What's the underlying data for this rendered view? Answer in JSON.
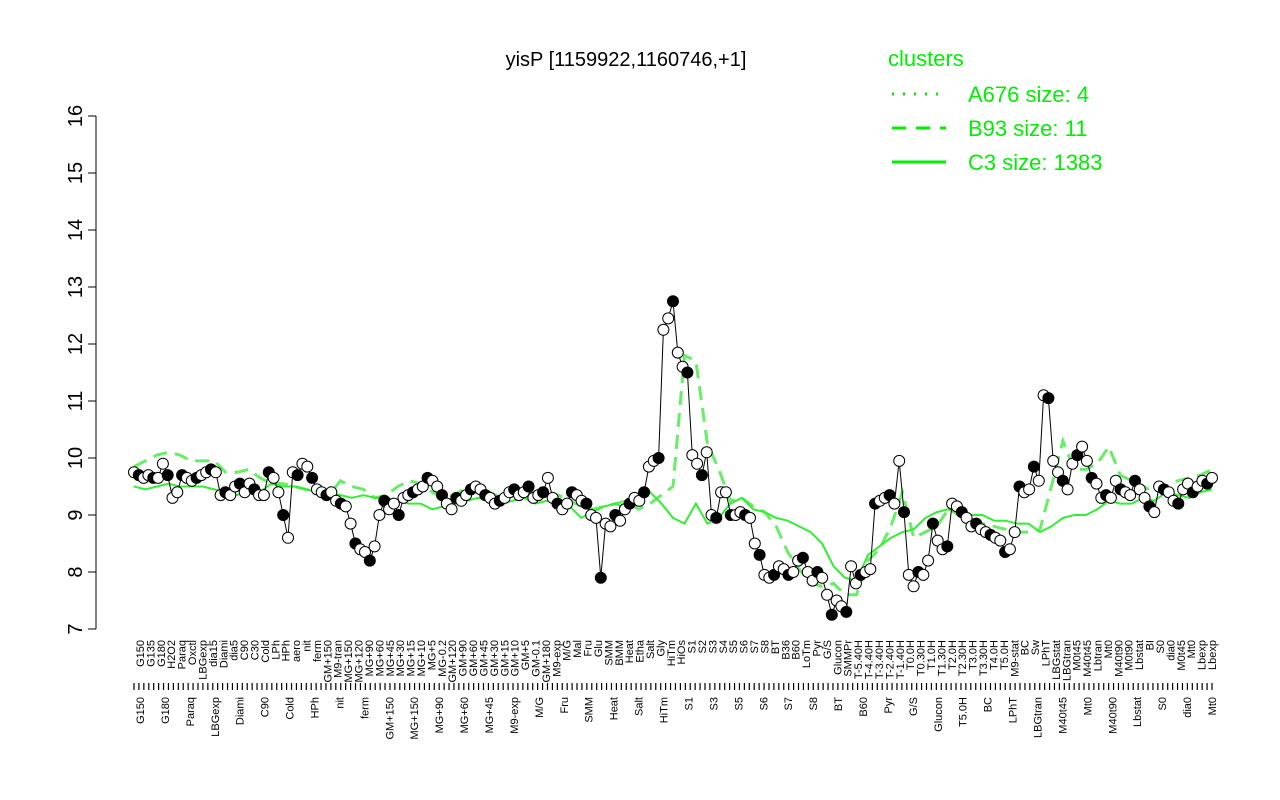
{
  "chart_data": {
    "type": "line",
    "title": "yisP [1159922,1160746,+1]",
    "xlabel": "",
    "ylabel": "",
    "ylim": [
      7,
      16
    ],
    "yticks": [
      7,
      8,
      9,
      10,
      11,
      12,
      13,
      14,
      15,
      16
    ],
    "grid": false,
    "legend": {
      "placement": "top-right",
      "title": "clusters",
      "entries": [
        {
          "label": "A676 size: 4",
          "style": "dotted"
        },
        {
          "label": "B93 size: 11",
          "style": "dashed"
        },
        {
          "label": "C3 size: 1383",
          "style": "solid"
        }
      ]
    },
    "tick_labels_top": [
      "G150",
      "G135",
      "G180",
      "H2O2",
      "Paraq",
      "Oxctl",
      "LBGexp",
      "dia15",
      "Diami",
      "dia5",
      "C90",
      "C30",
      "Cold",
      "LPh",
      "HPh",
      "aero",
      "nit",
      "ferm",
      "GM+150",
      "M9-tran",
      "MG+150",
      "MG+120",
      "MG+90",
      "MG+60",
      "MG+45",
      "MG+30",
      "MG+15",
      "MG+10",
      "MG+5",
      "MG-0.2",
      "GM+120",
      "GM+90",
      "GM+60",
      "GM+45",
      "GM+30",
      "GM+15",
      "GM+10",
      "GM+5",
      "GM-0.1",
      "GM+180",
      "M9-exp",
      "M/G",
      "Mal",
      "Fru",
      "Glu",
      "SMM",
      "BMM",
      "Heat",
      "Etha",
      "Salt",
      "Gly",
      "HiTm",
      "HiOs",
      "S1",
      "S2",
      "S3",
      "S4",
      "S5",
      "S6",
      "S7",
      "S8",
      "BT",
      "B36",
      "B60",
      "LoTm",
      "Pyr",
      "G/S",
      "Glucon",
      "SMMPr",
      "T-5.40H",
      "T-4.40H",
      "T-3.40H",
      "T-2.40H",
      "T-1.40H",
      "T0.0H",
      "T0.30H",
      "T1.0H",
      "T1.30H",
      "T2.0H",
      "T2.30H",
      "T3.0H",
      "T3.30H",
      "T4.0H",
      "T5.0H",
      "M9-stat",
      "BC",
      "Sw",
      "LPhT",
      "LBGstat",
      "LBGtran",
      "M0t45",
      "M40t45",
      "Lbtran",
      "Mt0",
      "M40t90",
      "M0t90",
      "Lbstat",
      "BI",
      "S0",
      "dia0",
      "M0t45",
      "Mt0",
      "Lbexp",
      "Lbexp"
    ],
    "tick_labels_bottom": [
      "G150",
      "G180",
      "Paraq",
      "LBGexp",
      "Diami",
      "C90",
      "Cold",
      "HPh",
      "nit",
      "ferm",
      "GM+150",
      "MG+150",
      "MG+90",
      "MG+60",
      "MG+45",
      "M9-exp",
      "M/G",
      "Fru",
      "SMM",
      "Heat",
      "Salt",
      "HiTm",
      "S1",
      "S3",
      "S5",
      "S6",
      "S7",
      "S8",
      "BT",
      "B60",
      "Pyr",
      "G/S",
      "Glucon",
      "T5.0H",
      "BC",
      "LPhT",
      "LBGtran",
      "M40t45",
      "Mt0",
      "M40t90",
      "Lbstat",
      "S0",
      "dia0",
      "Mt0"
    ],
    "series": [
      {
        "role": "gene",
        "y": [
          9.75,
          9.7,
          9.65,
          9.7,
          9.65,
          9.65,
          9.9,
          9.7,
          9.3,
          9.4,
          9.7,
          9.65,
          9.6,
          9.65,
          9.7,
          9.75,
          9.8,
          9.75,
          9.35,
          9.4,
          9.35,
          9.5,
          9.55,
          9.4,
          9.55,
          9.45,
          9.35,
          9.35,
          9.75,
          9.65,
          9.4,
          9.0,
          8.6,
          9.75,
          9.7,
          9.9,
          9.85,
          9.65,
          9.45,
          9.4,
          9.35,
          9.4,
          9.25,
          9.2,
          9.15,
          8.85,
          8.5,
          8.4,
          8.35,
          8.2,
          8.45,
          9.0,
          9.25,
          9.1,
          9.2,
          9.0,
          9.3,
          9.35,
          9.4,
          9.45,
          9.5,
          9.65,
          9.6,
          9.5,
          9.35,
          9.2,
          9.1,
          9.3,
          9.25,
          9.35,
          9.45,
          9.5,
          9.45,
          9.35,
          9.3,
          9.2,
          9.25,
          9.3,
          9.4,
          9.45,
          9.35,
          9.4,
          9.5,
          9.3,
          9.35,
          9.4,
          9.65,
          9.3,
          9.2,
          9.1,
          9.2,
          9.4,
          9.35,
          9.25,
          9.2,
          9.0,
          8.95,
          7.9,
          8.85,
          8.8,
          9.0,
          8.9,
          9.1,
          9.2,
          9.3,
          9.25,
          9.4,
          9.85,
          9.95,
          10.0,
          12.25,
          12.45,
          12.75,
          11.85,
          11.6,
          11.5,
          10.05,
          9.9,
          9.7,
          10.1,
          9.0,
          8.95,
          9.4,
          9.4,
          9.0,
          9.0,
          9.05,
          9.0,
          8.95,
          8.5,
          8.3,
          7.95,
          7.9,
          7.95,
          8.1,
          8.05,
          7.95,
          8.0,
          8.2,
          8.25,
          8.0,
          7.85,
          8.0,
          7.9,
          7.6,
          7.25,
          7.5,
          7.4,
          7.3,
          8.1,
          7.8,
          7.95,
          8.0,
          8.05,
          9.2,
          9.25,
          9.3,
          9.35,
          9.2,
          9.95,
          9.05,
          7.95,
          7.75,
          8.0,
          7.95,
          8.2,
          8.85,
          8.55,
          8.4,
          8.45,
          9.2,
          9.15,
          9.05,
          8.95,
          8.8,
          8.85,
          8.75,
          8.7,
          8.65,
          8.6,
          8.55,
          8.35,
          8.4,
          8.7,
          9.5,
          9.4,
          9.45,
          9.85,
          9.6,
          11.1,
          11.05,
          9.95,
          9.75,
          9.6,
          9.45,
          9.9,
          10.05,
          10.2,
          9.95,
          9.65,
          9.55,
          9.3,
          9.35,
          9.3,
          9.6,
          9.45,
          9.4,
          9.35,
          9.6,
          9.45,
          9.3,
          9.15,
          9.05,
          9.5,
          9.45,
          9.4,
          9.25,
          9.2,
          9.45,
          9.55,
          9.4,
          9.5,
          9.6,
          9.55,
          9.65
        ]
      },
      {
        "role": "cluster B93",
        "y": [
          9.85,
          9.95,
          10.05,
          10.1,
          10.05,
          9.95,
          9.95,
          9.95,
          9.75,
          9.75,
          9.8,
          9.65,
          9.55,
          9.55,
          9.5,
          9.45,
          9.4,
          9.35,
          9.6,
          9.5,
          9.45,
          9.3,
          9.35,
          9.5,
          9.6,
          9.55,
          9.4,
          9.3,
          9.35,
          9.5,
          9.55,
          9.4,
          9.3,
          9.35,
          9.45,
          9.4,
          9.3,
          9.35,
          9.25,
          9.15,
          9.1,
          9.15,
          9.2,
          9.25,
          9.1,
          9.2,
          9.35,
          9.5,
          11.8,
          11.7,
          10.25,
          9.8,
          9.25,
          9.3,
          9.15,
          9.05,
          8.8,
          8.35,
          8.05,
          7.8,
          7.75,
          7.8,
          7.6,
          7.6,
          8.2,
          8.4,
          8.8,
          9.4,
          8.6,
          8.7,
          8.8,
          9.1,
          9.0,
          8.9,
          8.85,
          8.8,
          8.75,
          8.7,
          8.7,
          8.75,
          9.5,
          10.3,
          9.8,
          9.8,
          9.9,
          10.2,
          9.7,
          9.6,
          9.5,
          9.4,
          9.5,
          9.6,
          9.65,
          9.7,
          9.8
        ]
      },
      {
        "role": "cluster C3",
        "y": [
          9.5,
          9.45,
          9.5,
          9.55,
          9.5,
          9.5,
          9.5,
          9.45,
          9.4,
          9.35,
          9.45,
          9.4,
          9.55,
          9.5,
          9.5,
          9.45,
          9.4,
          9.4,
          9.35,
          9.3,
          9.35,
          9.3,
          9.3,
          9.25,
          9.2,
          9.2,
          9.1,
          9.15,
          9.2,
          9.25,
          9.3,
          9.25,
          9.2,
          9.25,
          9.3,
          9.2,
          9.25,
          9.2,
          9.15,
          8.95,
          9.05,
          9.15,
          9.2,
          9.1,
          9.3,
          9.4,
          9.2,
          8.95,
          8.85,
          9.2,
          8.85,
          8.95,
          9.2,
          9.3,
          9.1,
          9.05,
          8.95,
          8.9,
          8.8,
          8.7,
          8.5,
          8.1,
          7.9,
          7.85,
          8.3,
          8.45,
          8.6,
          8.7,
          8.75,
          8.95,
          9.05,
          9.1,
          9.05,
          9.0,
          9.0,
          8.9,
          8.9,
          8.85,
          8.85,
          8.7,
          8.8,
          8.95,
          9.0,
          9.0,
          9.1,
          9.25,
          9.2,
          9.2,
          9.3,
          9.25,
          9.4,
          9.35,
          9.3,
          9.4,
          9.45
        ]
      }
    ]
  }
}
